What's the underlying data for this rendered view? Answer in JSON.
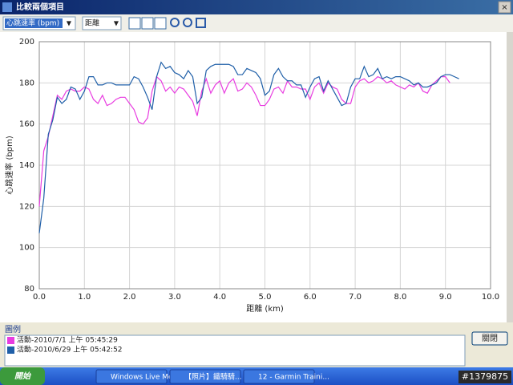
{
  "window": {
    "title": "比較兩個項目",
    "close_button": "關閉"
  },
  "toolbar": {
    "metric": "心跳速率 (bpm)",
    "axis": "距離"
  },
  "legend_panel_title": "圖例",
  "taskbar": {
    "start": "開始",
    "items": [
      "Windows Live Me...",
      "【照片】鐵騎騎...",
      "12 - Garmin Traini..."
    ],
    "watermark": "#1379875"
  },
  "chart_data": {
    "type": "line",
    "x_label": "距離 (km)",
    "y_label": "心跳速率 (bpm)",
    "x": [
      0,
      0.1,
      0.2,
      0.3,
      0.4,
      0.5,
      0.6,
      0.7,
      0.8,
      0.9,
      1.0,
      1.1,
      1.2,
      1.3,
      1.4,
      1.5,
      1.6,
      1.7,
      1.8,
      1.9,
      2.0,
      2.1,
      2.2,
      2.3,
      2.4,
      2.5,
      2.6,
      2.7,
      2.8,
      2.9,
      3.0,
      3.1,
      3.2,
      3.3,
      3.4,
      3.5,
      3.6,
      3.7,
      3.8,
      3.9,
      4.0,
      4.1,
      4.2,
      4.3,
      4.4,
      4.5,
      4.6,
      4.7,
      4.8,
      4.9,
      5.0,
      5.1,
      5.2,
      5.3,
      5.4,
      5.5,
      5.6,
      5.7,
      5.8,
      5.9,
      6.0,
      6.1,
      6.2,
      6.3,
      6.4,
      6.5,
      6.6,
      6.7,
      6.8,
      6.9,
      7.0,
      7.1,
      7.2,
      7.3,
      7.4,
      7.5,
      7.6,
      7.7,
      7.8,
      7.9,
      8.0,
      8.1,
      8.2,
      8.3,
      8.4,
      8.5,
      8.6,
      8.7,
      8.8,
      8.9,
      9.0,
      9.1,
      9.2,
      9.3
    ],
    "series": [
      {
        "name": "活動-2010/7/1 上午 05:45:29",
        "color": "#e83ce0",
        "values": [
          120,
          147,
          154,
          164,
          174,
          172,
          176,
          177,
          176,
          176,
          178,
          177,
          172,
          170,
          174,
          169,
          170,
          172,
          173,
          173,
          170,
          167,
          161,
          160,
          163,
          176,
          183,
          181,
          176,
          178,
          175,
          178,
          177,
          174,
          171,
          164,
          176,
          182,
          175,
          179,
          181,
          175,
          180,
          182,
          176,
          177,
          180,
          178,
          174,
          169,
          169,
          172,
          177,
          178,
          175,
          181,
          178,
          178,
          177,
          177,
          172,
          178,
          180,
          175,
          180,
          178,
          177,
          172,
          170,
          170,
          178,
          181,
          182,
          180,
          181,
          183,
          182,
          180,
          181,
          179,
          178,
          177,
          179,
          178,
          180,
          176,
          175,
          179,
          181,
          183,
          183,
          180,
          null,
          null
        ]
      },
      {
        "name": "活動-2010/6/29 上午 05:42:52",
        "color": "#1f5fa8",
        "values": [
          107,
          124,
          155,
          162,
          173,
          170,
          172,
          178,
          177,
          172,
          176,
          183,
          183,
          179,
          179,
          180,
          180,
          179,
          179,
          179,
          179,
          183,
          182,
          178,
          173,
          167,
          183,
          190,
          187,
          188,
          185,
          184,
          182,
          186,
          183,
          170,
          173,
          186,
          188,
          189,
          189,
          189,
          189,
          188,
          184,
          184,
          187,
          186,
          185,
          182,
          174,
          176,
          184,
          187,
          183,
          181,
          181,
          179,
          179,
          173,
          178,
          182,
          183,
          176,
          181,
          177,
          173,
          169,
          170,
          178,
          182,
          182,
          188,
          183,
          184,
          187,
          182,
          183,
          182,
          183,
          183,
          182,
          181,
          179,
          180,
          178,
          178,
          179,
          180,
          183,
          184,
          184,
          183,
          182
        ]
      }
    ],
    "xlim": [
      0,
      10
    ],
    "ylim": [
      80,
      200
    ],
    "xticks": [
      {
        "value": 0,
        "label": "0.0"
      },
      {
        "value": 1,
        "label": "1.0"
      },
      {
        "value": 2,
        "label": "2.0"
      },
      {
        "value": 3,
        "label": "3.0"
      },
      {
        "value": 4,
        "label": "4.0"
      },
      {
        "value": 5,
        "label": "5.0"
      },
      {
        "value": 6,
        "label": "6.0"
      },
      {
        "value": 7,
        "label": "7.0"
      },
      {
        "value": 8,
        "label": "8.0"
      },
      {
        "value": 9,
        "label": "9.0"
      },
      {
        "value": 10,
        "label": "10.0"
      }
    ],
    "yticks": [
      80,
      100,
      120,
      140,
      160,
      180,
      200
    ],
    "grid": true
  }
}
